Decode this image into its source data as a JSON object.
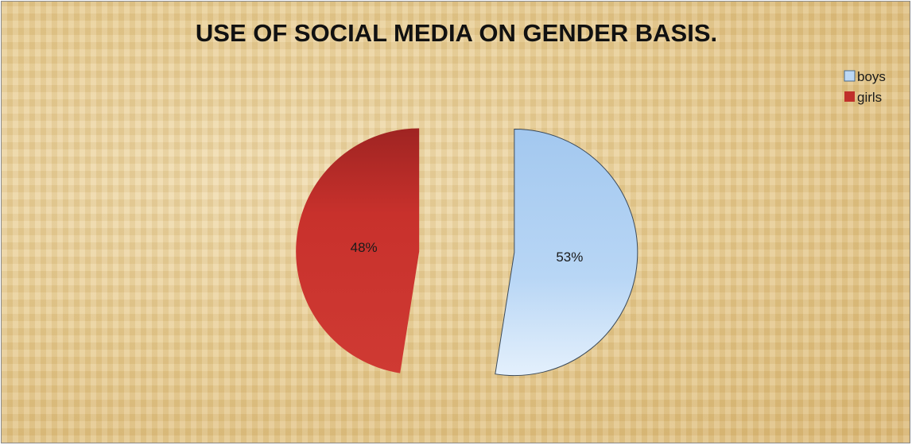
{
  "chart_data": {
    "type": "pie",
    "title": "USE OF SOCIAL MEDIA ON GENDER BASIS.",
    "slices": [
      {
        "label": "boys",
        "value": 53,
        "display": "53%",
        "color": "#a9cdf2"
      },
      {
        "label": "girls",
        "value": 48,
        "display": "48%",
        "color": "#c8312c"
      }
    ],
    "legend": {
      "placement": "top-right",
      "entries": [
        "boys",
        "girls"
      ]
    },
    "exploded": true
  }
}
